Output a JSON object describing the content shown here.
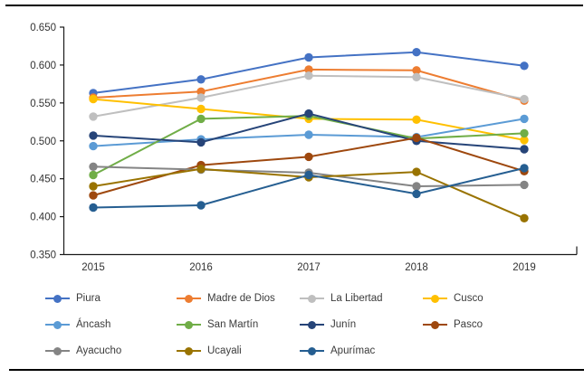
{
  "chart_data": {
    "type": "line",
    "title": "",
    "xlabel": "",
    "ylabel": "",
    "x": [
      "2015",
      "2016",
      "2017",
      "2018",
      "2019"
    ],
    "ylim": [
      0.35,
      0.65
    ],
    "ytick_step": 0.05,
    "ytick_labels": [
      "0.650",
      "0.600",
      "0.550",
      "0.500",
      "0.450",
      "0.400",
      "0.350"
    ],
    "grid": false,
    "legend_position": "bottom",
    "legend_columns_per_row": 4,
    "axis_color": "#1a1a1a",
    "text_color": "#333333",
    "series": [
      {
        "name": "Piura",
        "color": "#4472C4",
        "values": [
          0.563,
          0.581,
          0.61,
          0.617,
          0.599
        ]
      },
      {
        "name": "Madre de Dios",
        "color": "#ED7D31",
        "values": [
          0.557,
          0.565,
          0.594,
          0.593,
          0.553
        ]
      },
      {
        "name": "La Libertad",
        "color": "#BFBFBF",
        "values": [
          0.532,
          0.557,
          0.586,
          0.584,
          0.555
        ]
      },
      {
        "name": "Cusco",
        "color": "#FFC000",
        "values": [
          0.555,
          0.542,
          0.529,
          0.528,
          0.501
        ]
      },
      {
        "name": "Áncash",
        "color": "#5B9BD5",
        "values": [
          0.493,
          0.502,
          0.508,
          0.505,
          0.529
        ]
      },
      {
        "name": "San Martín",
        "color": "#70AD47",
        "values": [
          0.455,
          0.529,
          0.533,
          0.503,
          0.51
        ]
      },
      {
        "name": "Junín",
        "color": "#264478",
        "values": [
          0.507,
          0.498,
          0.536,
          0.5,
          0.489
        ]
      },
      {
        "name": "Pasco",
        "color": "#9E480E",
        "values": [
          0.428,
          0.468,
          0.479,
          0.504,
          0.46
        ]
      },
      {
        "name": "Ayacucho",
        "color": "#848484",
        "values": [
          0.466,
          0.462,
          0.458,
          0.44,
          0.442
        ]
      },
      {
        "name": "Ucayali",
        "color": "#997300",
        "values": [
          0.44,
          0.463,
          0.452,
          0.459,
          0.398
        ]
      },
      {
        "name": "Apurímac",
        "color": "#255E91",
        "values": [
          0.412,
          0.415,
          0.455,
          0.43,
          0.464
        ]
      }
    ]
  }
}
